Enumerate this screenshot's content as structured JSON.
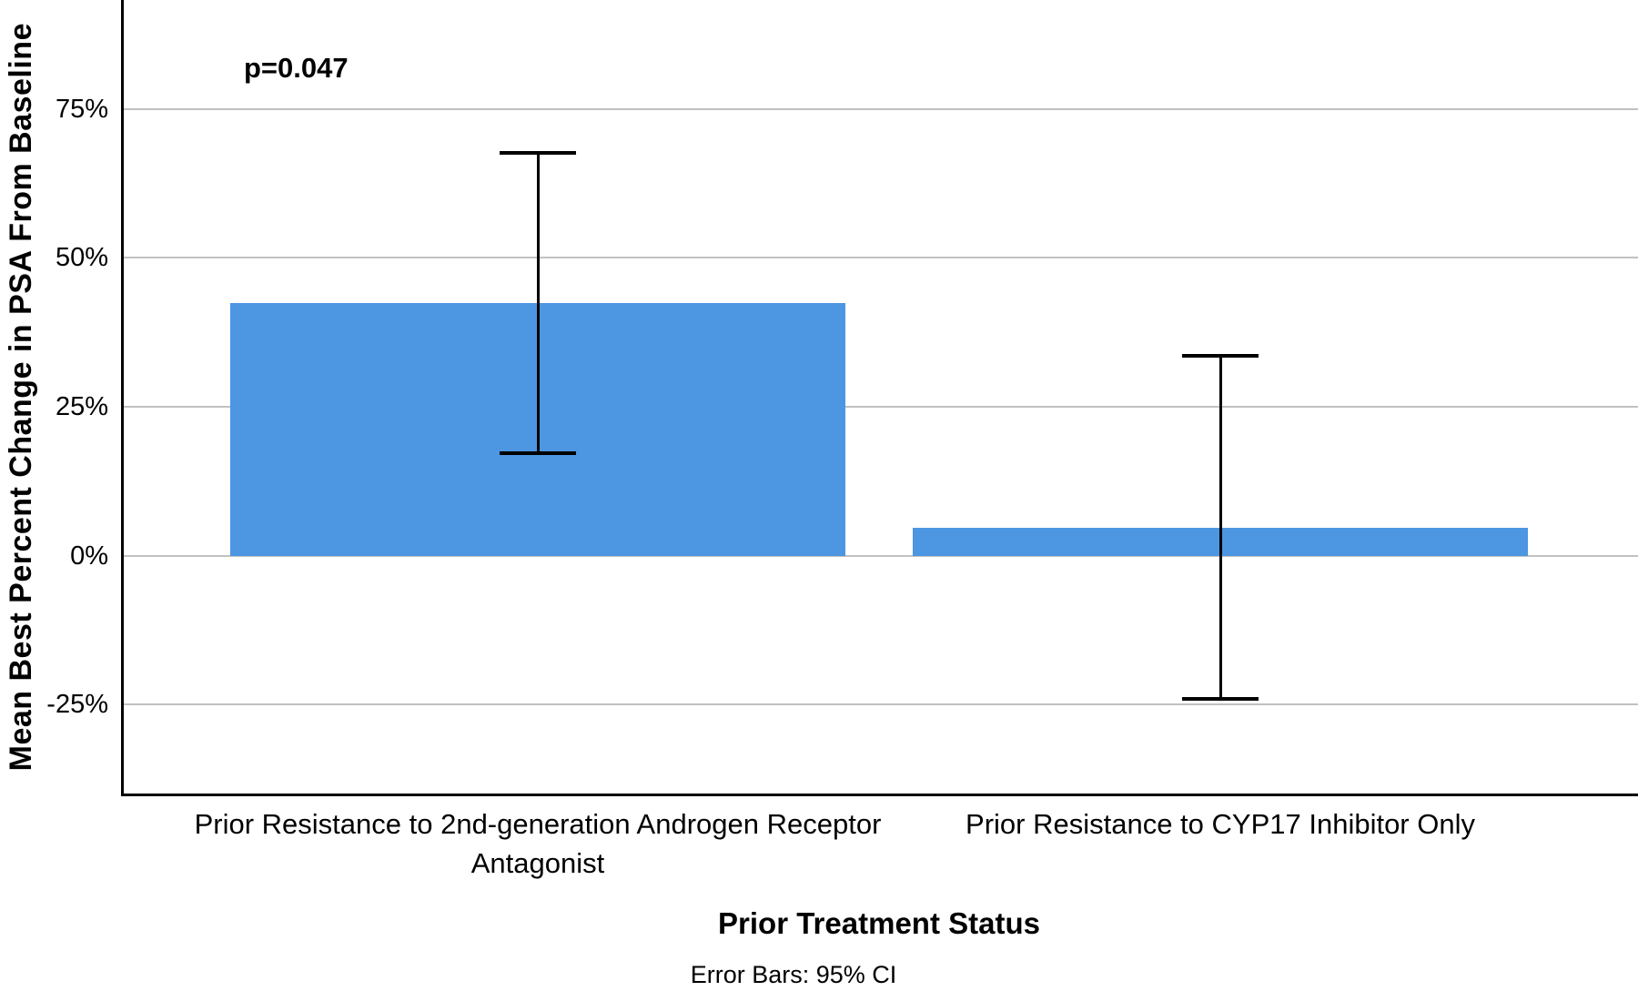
{
  "chart_data": {
    "type": "bar",
    "title": "",
    "categories": [
      "Prior Resistance to 2nd-generation Androgen Receptor Antagonist",
      "Prior Resistance to CYP17 Inhibitor Only"
    ],
    "values": [
      42.4,
      4.7
    ],
    "ci_low": [
      17.2,
      -24.0
    ],
    "ci_high": [
      67.6,
      33.6
    ],
    "xlabel": "Prior Treatment Status",
    "ylabel": "Mean Best Percent Change in PSA From Baseline",
    "yticks": [
      {
        "label": "75%",
        "value": 75
      },
      {
        "label": "50%",
        "value": 50
      },
      {
        "label": "25%",
        "value": 25
      },
      {
        "label": "0%",
        "value": 0
      },
      {
        "label": "-25%",
        "value": -25
      }
    ],
    "ylim": [
      -39.9,
      93.3
    ],
    "grid": "horizontal",
    "legend": "none",
    "annotation": "p=0.047",
    "footnote": "Error Bars: 95% CI",
    "bar_color": "#4C96E2",
    "gridline_color": "#c1c1c1",
    "axis_color": "#000000",
    "error_bar_color": "#000000"
  }
}
